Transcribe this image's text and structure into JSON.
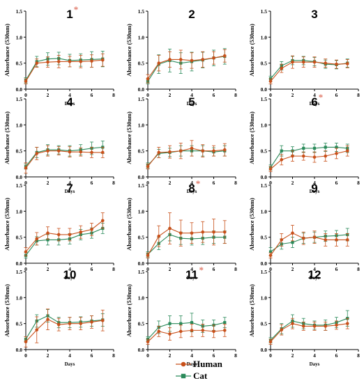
{
  "colors": {
    "human": "#C8501A",
    "cat": "#2A8A5A",
    "star": "#E07A6A",
    "axis": "#000000"
  },
  "chart_data": {
    "type": "line",
    "grid": "off",
    "legend_placement": "bottom-center",
    "shared": {
      "xlabel": "Days",
      "ylabel": "Absorbance (530nm)",
      "x": [
        0,
        1,
        2,
        3,
        4,
        5,
        6,
        7
      ],
      "xlim": [
        0,
        8
      ],
      "xticks": [
        "0",
        "2",
        "4",
        "6",
        "8"
      ],
      "ylim": [
        0,
        1.5
      ],
      "yticks": [
        "0.0",
        "0.5",
        "1.0",
        "1.5"
      ]
    },
    "legend": [
      {
        "name": "Human",
        "marker": "circle"
      },
      {
        "name": "Cat",
        "marker": "square"
      }
    ],
    "panels": [
      {
        "title": "1",
        "star": "*",
        "human": [
          0.15,
          0.5,
          0.52,
          0.53,
          0.53,
          0.53,
          0.54,
          0.56
        ],
        "human_err": [
          0.05,
          0.08,
          0.1,
          0.12,
          0.1,
          0.12,
          0.12,
          0.12
        ],
        "cat": [
          0.17,
          0.53,
          0.58,
          0.59,
          0.55,
          0.56,
          0.57,
          0.58
        ],
        "cat_err": [
          0.05,
          0.1,
          0.12,
          0.12,
          0.12,
          0.12,
          0.15,
          0.15
        ]
      },
      {
        "title": "2",
        "star": "",
        "human": [
          0.2,
          0.5,
          0.57,
          0.57,
          0.55,
          0.57,
          0.6,
          0.64
        ],
        "human_err": [
          0.08,
          0.15,
          0.15,
          0.18,
          0.15,
          0.15,
          0.12,
          0.12
        ],
        "cat": [
          0.15,
          0.48,
          0.55,
          0.5,
          0.53,
          0.56,
          0.6,
          0.63
        ],
        "cat_err": [
          0.05,
          0.18,
          0.22,
          0.2,
          0.18,
          0.15,
          0.15,
          0.15
        ]
      },
      {
        "title": "3",
        "star": "",
        "human": [
          0.15,
          0.4,
          0.52,
          0.52,
          0.52,
          0.5,
          0.48,
          0.49
        ],
        "human_err": [
          0.05,
          0.08,
          0.12,
          0.1,
          0.1,
          0.08,
          0.08,
          0.08
        ],
        "cat": [
          0.2,
          0.45,
          0.55,
          0.55,
          0.53,
          0.48,
          0.47,
          0.5
        ],
        "cat_err": [
          0.05,
          0.08,
          0.08,
          0.08,
          0.08,
          0.08,
          0.08,
          0.08
        ]
      },
      {
        "title": "4",
        "star": "",
        "human": [
          0.17,
          0.45,
          0.5,
          0.5,
          0.48,
          0.48,
          0.47,
          0.47
        ],
        "human_err": [
          0.1,
          0.12,
          0.1,
          0.08,
          0.1,
          0.08,
          0.1,
          0.1
        ],
        "cat": [
          0.2,
          0.47,
          0.52,
          0.52,
          0.5,
          0.52,
          0.55,
          0.57
        ],
        "cat_err": [
          0.05,
          0.1,
          0.1,
          0.08,
          0.1,
          0.1,
          0.12,
          0.12
        ]
      },
      {
        "title": "5",
        "star": "",
        "human": [
          0.2,
          0.47,
          0.48,
          0.5,
          0.55,
          0.5,
          0.5,
          0.52
        ],
        "human_err": [
          0.05,
          0.1,
          0.12,
          0.15,
          0.15,
          0.12,
          0.1,
          0.12
        ],
        "cat": [
          0.22,
          0.45,
          0.47,
          0.5,
          0.5,
          0.5,
          0.48,
          0.5
        ],
        "cat_err": [
          0.05,
          0.08,
          0.08,
          0.1,
          0.1,
          0.1,
          0.08,
          0.1
        ]
      },
      {
        "title": "6",
        "star": "*",
        "human": [
          0.15,
          0.33,
          0.4,
          0.4,
          0.38,
          0.4,
          0.45,
          0.5
        ],
        "human_err": [
          0.05,
          0.1,
          0.1,
          0.08,
          0.1,
          0.1,
          0.1,
          0.1
        ],
        "cat": [
          0.18,
          0.5,
          0.5,
          0.55,
          0.55,
          0.57,
          0.57,
          0.55
        ],
        "cat_err": [
          0.05,
          0.1,
          0.08,
          0.08,
          0.08,
          0.08,
          0.08,
          0.08
        ]
      },
      {
        "title": "7",
        "star": "",
        "human": [
          0.22,
          0.47,
          0.58,
          0.55,
          0.55,
          0.6,
          0.65,
          0.82
        ],
        "human_err": [
          0.08,
          0.12,
          0.12,
          0.12,
          0.12,
          0.12,
          0.12,
          0.15
        ],
        "cat": [
          0.15,
          0.43,
          0.45,
          0.45,
          0.47,
          0.55,
          0.58,
          0.67
        ],
        "cat_err": [
          0.05,
          0.08,
          0.1,
          0.1,
          0.1,
          0.1,
          0.1,
          0.1
        ]
      },
      {
        "title": "8",
        "star": "*",
        "human": [
          0.15,
          0.52,
          0.67,
          0.58,
          0.58,
          0.6,
          0.6,
          0.6
        ],
        "human_err": [
          0.05,
          0.2,
          0.3,
          0.25,
          0.2,
          0.2,
          0.25,
          0.22
        ],
        "cat": [
          0.17,
          0.38,
          0.55,
          0.48,
          0.47,
          0.48,
          0.5,
          0.5
        ],
        "cat_err": [
          0.05,
          0.12,
          0.12,
          0.12,
          0.12,
          0.12,
          0.12,
          0.12
        ]
      },
      {
        "title": "9",
        "star": "",
        "human": [
          0.15,
          0.45,
          0.58,
          0.48,
          0.5,
          0.45,
          0.45,
          0.45
        ],
        "human_err": [
          0.05,
          0.12,
          0.15,
          0.12,
          0.12,
          0.12,
          0.12,
          0.12
        ],
        "cat": [
          0.22,
          0.37,
          0.4,
          0.48,
          0.5,
          0.52,
          0.53,
          0.55
        ],
        "cat_err": [
          0.08,
          0.1,
          0.1,
          0.1,
          0.1,
          0.1,
          0.1,
          0.12
        ]
      },
      {
        "title": "10",
        "star": "",
        "human": [
          0.15,
          0.38,
          0.58,
          0.48,
          0.5,
          0.5,
          0.53,
          0.56
        ],
        "human_err": [
          0.1,
          0.25,
          0.2,
          0.12,
          0.12,
          0.12,
          0.12,
          0.2
        ],
        "cat": [
          0.2,
          0.55,
          0.65,
          0.52,
          0.52,
          0.53,
          0.55,
          0.57
        ],
        "cat_err": [
          0.05,
          0.12,
          0.12,
          0.1,
          0.1,
          0.1,
          0.1,
          0.12
        ]
      },
      {
        "title": "11",
        "star": "*",
        "human": [
          0.15,
          0.35,
          0.3,
          0.35,
          0.37,
          0.37,
          0.35,
          0.37
        ],
        "human_err": [
          0.05,
          0.1,
          0.12,
          0.12,
          0.12,
          0.12,
          0.12,
          0.12
        ],
        "cat": [
          0.2,
          0.43,
          0.5,
          0.5,
          0.52,
          0.45,
          0.47,
          0.52
        ],
        "cat_err": [
          0.05,
          0.12,
          0.15,
          0.15,
          0.18,
          0.12,
          0.1,
          0.1
        ]
      },
      {
        "title": "12",
        "star": "",
        "human": [
          0.15,
          0.38,
          0.5,
          0.45,
          0.45,
          0.45,
          0.47,
          0.5
        ],
        "human_err": [
          0.05,
          0.1,
          0.1,
          0.08,
          0.08,
          0.08,
          0.08,
          0.1
        ],
        "cat": [
          0.18,
          0.4,
          0.55,
          0.5,
          0.47,
          0.47,
          0.52,
          0.6
        ],
        "cat_err": [
          0.05,
          0.1,
          0.12,
          0.1,
          0.08,
          0.1,
          0.1,
          0.15
        ]
      }
    ]
  }
}
